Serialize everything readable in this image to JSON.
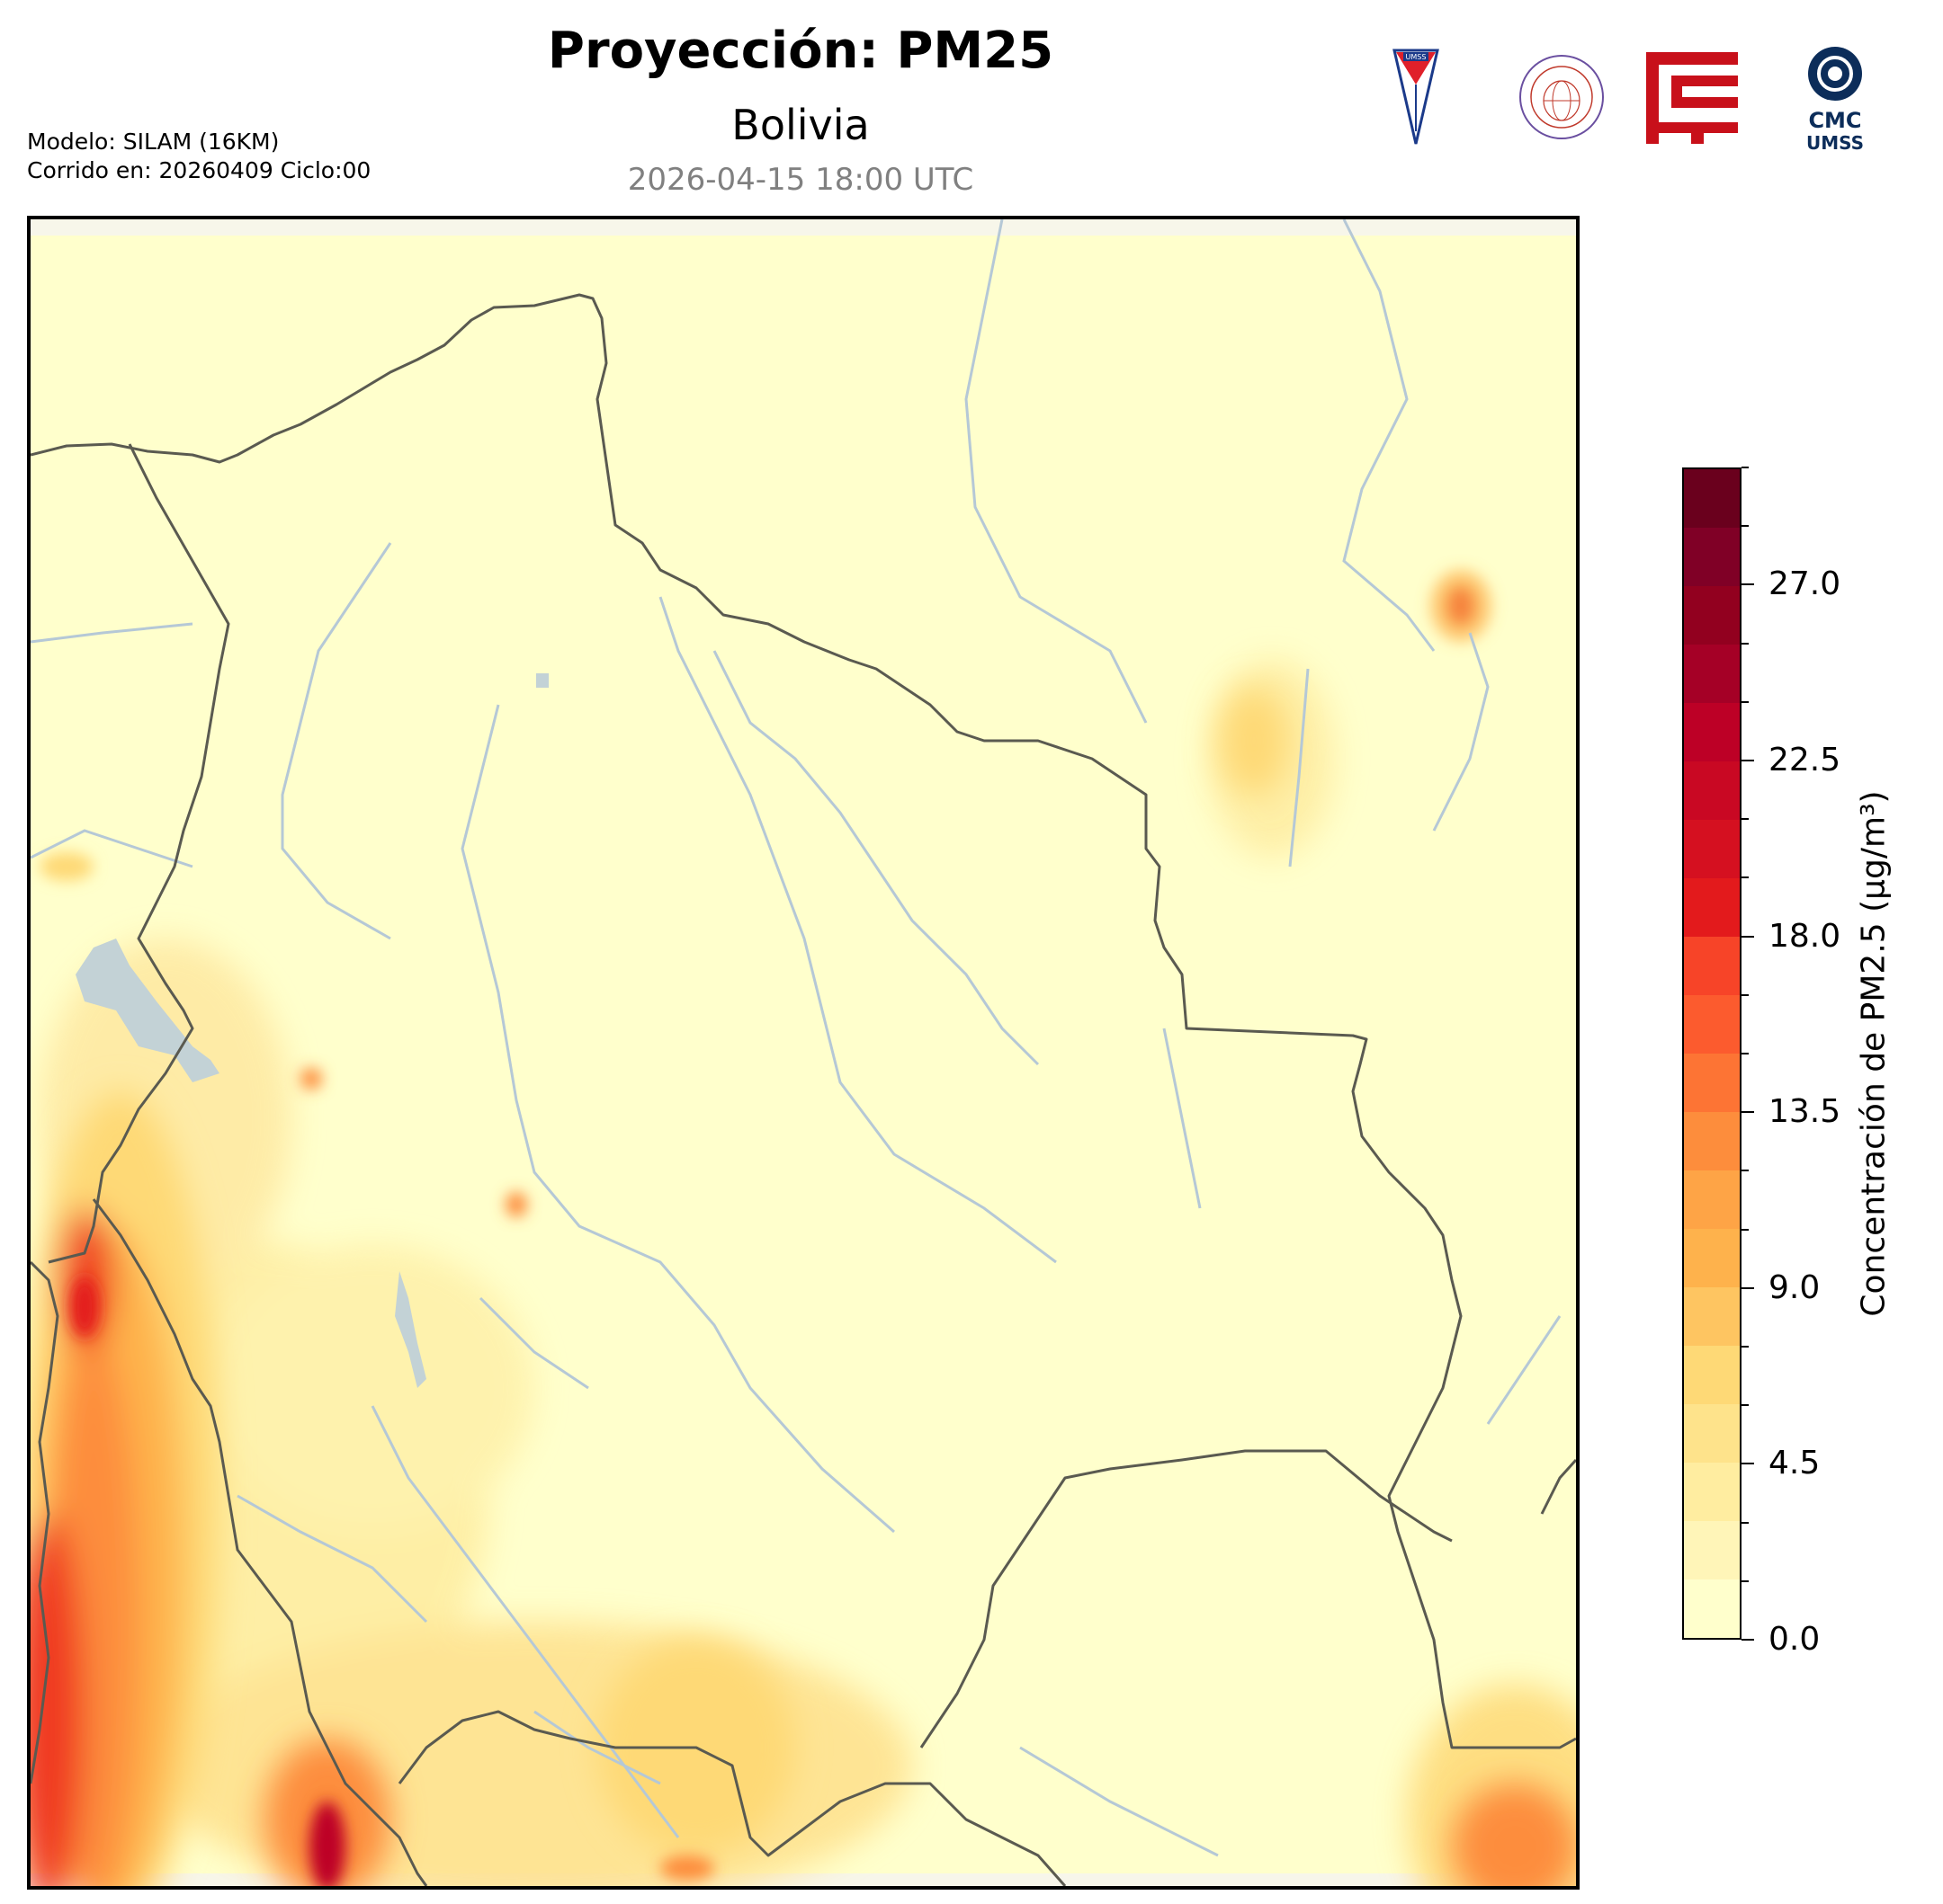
{
  "header": {
    "title": "Proyección: PM25",
    "subtitle": "Bolivia",
    "datetime": "2026-04-15 18:00 UTC",
    "model_line": "Modelo: SILAM (16KM)",
    "run_line": "Corrido en: 20260409 Ciclo:00"
  },
  "logos": [
    {
      "name": "umss-shield-logo",
      "text": "UMSS"
    },
    {
      "name": "departamento-fisica-seal-logo",
      "text": "DEPARTAMENTO DE FÍSICA"
    },
    {
      "name": "red-geometric-logo",
      "text": ""
    },
    {
      "name": "cmc-umss-logo",
      "text": "CMC UMSS"
    }
  ],
  "colorbar": {
    "title": "Concentración de PM2.5 (µg/m³)",
    "min": 0,
    "max": 30,
    "step": 1.5,
    "tick_labels": [
      "0.0",
      "4.5",
      "9.0",
      "13.5",
      "18.0",
      "22.5",
      "27.0"
    ],
    "tick_values": [
      0,
      4.5,
      9.0,
      13.5,
      18.0,
      22.5,
      27.0
    ],
    "colors": [
      "#ffffcc",
      "#fff5b8",
      "#ffeda0",
      "#fee38b",
      "#fed976",
      "#fec561",
      "#feb24c",
      "#fea446",
      "#fd8d3c",
      "#fd7434",
      "#fc5b2e",
      "#f74428",
      "#e31a1c",
      "#d51020",
      "#c90823",
      "#bd0026",
      "#a50026",
      "#92001f",
      "#800026",
      "#6a001d"
    ]
  },
  "map": {
    "region": "Bolivia",
    "background_color": "#ffffcc",
    "border_color": "#5a5a50",
    "river_color": "#b5c8d6",
    "lake_color": "#c3d2d6"
  }
}
